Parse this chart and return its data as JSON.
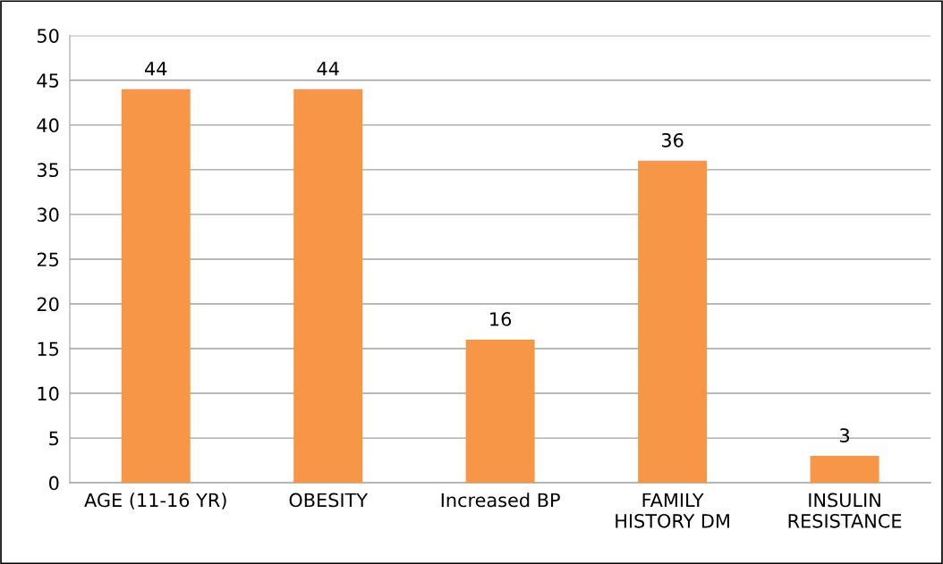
{
  "chart_data": {
    "type": "bar",
    "categories": [
      "AGE (11-16 YR)",
      "OBESITY",
      "Increased BP",
      "FAMILY\nHISTORY DM",
      "INSULIN\nRESISTANCE"
    ],
    "values": [
      44,
      44,
      16,
      36,
      3
    ],
    "color": "#f79646",
    "ylim": [
      0,
      50
    ],
    "yticks": [
      0,
      5,
      10,
      15,
      20,
      25,
      30,
      35,
      40,
      45,
      50
    ],
    "grid": "y",
    "data_labels": true
  }
}
